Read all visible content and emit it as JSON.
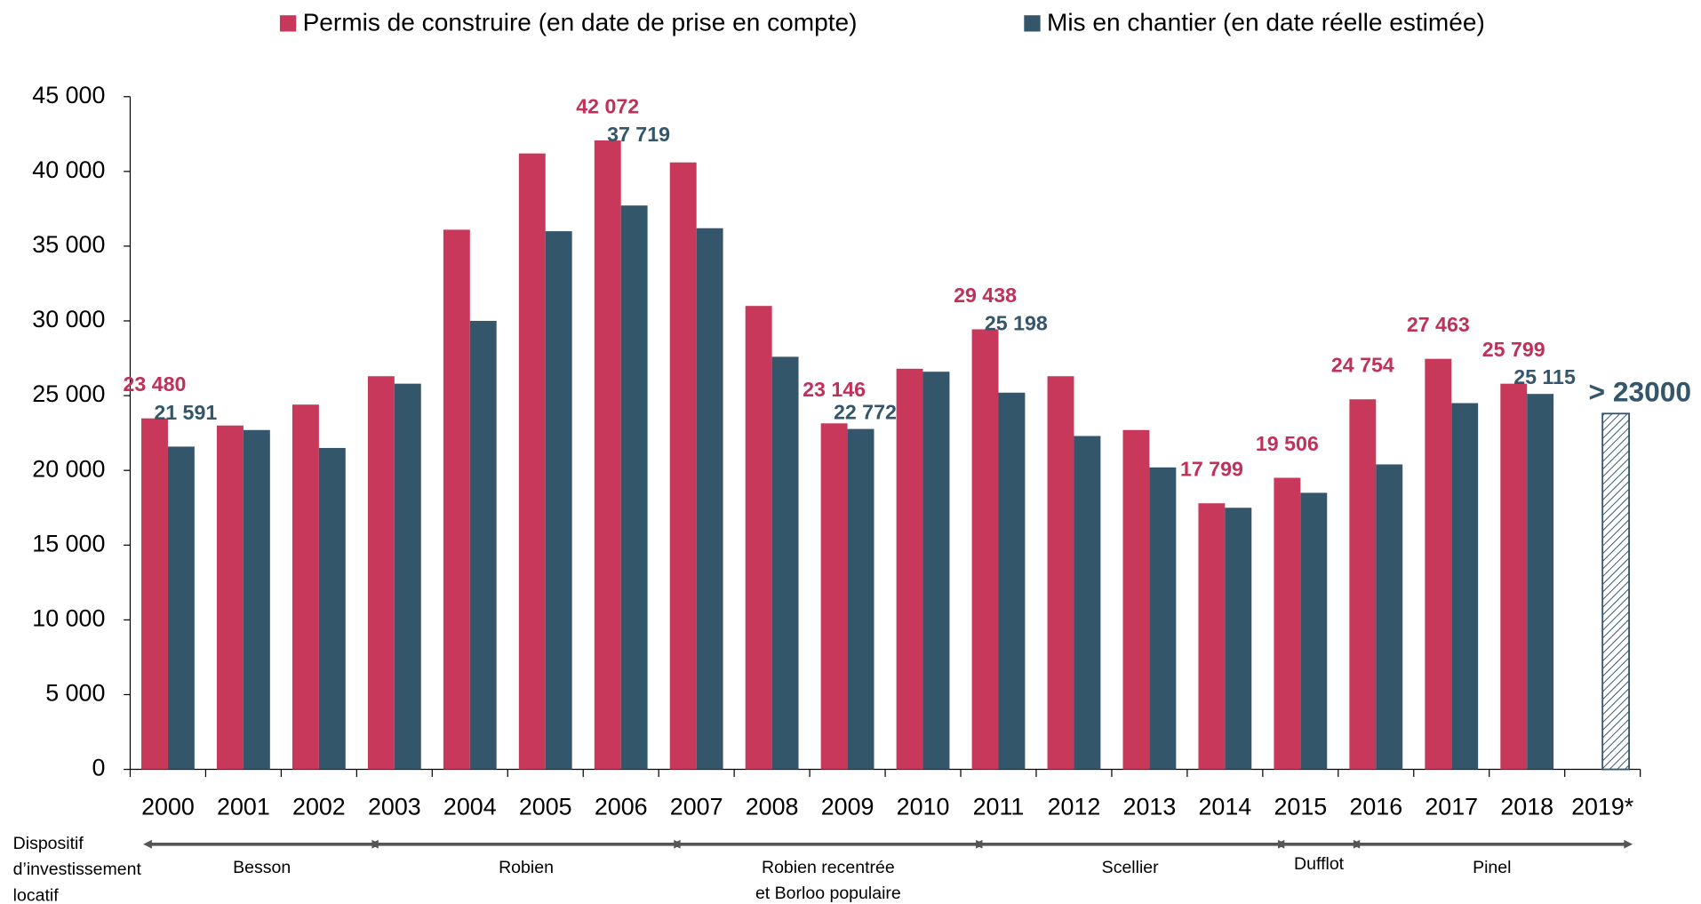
{
  "chart_data": {
    "type": "bar",
    "categories": [
      "2000",
      "2001",
      "2002",
      "2003",
      "2004",
      "2005",
      "2006",
      "2007",
      "2008",
      "2009",
      "2010",
      "2011",
      "2012",
      "2013",
      "2014",
      "2015",
      "2016",
      "2017",
      "2018",
      "2019*"
    ],
    "series": [
      {
        "name": "Permis de construire (en date de prise en compte)",
        "color": "#c8385a",
        "label_color": "#c0315a",
        "values": [
          23480,
          23000,
          24400,
          26300,
          36100,
          41200,
          42072,
          40600,
          31000,
          23146,
          26800,
          29438,
          26300,
          22700,
          17799,
          19506,
          24754,
          27463,
          25799,
          null
        ],
        "value_labels": [
          "23 480",
          null,
          null,
          null,
          null,
          null,
          "42 072",
          null,
          null,
          "23 146",
          null,
          "29 438",
          null,
          null,
          "17 799",
          "19 506",
          "24 754",
          "27 463",
          "25 799",
          null
        ]
      },
      {
        "name": "Mis en chantier (en date réelle estimée)",
        "color": "#34566b",
        "label_color": "#34566b",
        "values": [
          21591,
          22700,
          21500,
          25800,
          30000,
          36000,
          37719,
          36200,
          27600,
          22772,
          26600,
          25198,
          22300,
          20200,
          17500,
          18500,
          20400,
          24500,
          25115,
          null
        ],
        "value_labels": [
          "21 591",
          null,
          null,
          null,
          null,
          null,
          "37 719",
          null,
          null,
          "22 772",
          null,
          "25 198",
          null,
          null,
          null,
          null,
          null,
          null,
          "25 115",
          null
        ]
      }
    ],
    "estimate": {
      "category": "2019*",
      "value": 23800,
      "label": "> 23000"
    },
    "ylim": [
      0,
      45000
    ],
    "yticks": [
      0,
      {
        "value": 5000,
        "label": "5 000"
      },
      {
        "value": 10000,
        "label": "10 000"
      },
      {
        "value": 15000,
        "label": "15 000"
      },
      {
        "value": 20000,
        "label": "20 000"
      },
      {
        "value": 25000,
        "label": "25 000"
      },
      {
        "value": 30000,
        "label": "30 000"
      },
      {
        "value": 35000,
        "label": "35 000"
      },
      {
        "value": 40000,
        "label": "40 000"
      },
      {
        "value": 45000,
        "label": "45 000"
      }
    ],
    "legend": "top",
    "periods_title": [
      "Dispositif",
      "d’investissement",
      "locatif"
    ],
    "periods": [
      {
        "name": [
          "Besson"
        ],
        "from": "2000",
        "to": "2002"
      },
      {
        "name": [
          "Robien"
        ],
        "from": "2003",
        "to": "2006"
      },
      {
        "name": [
          "Robien recentrée",
          "et Borloo populaire"
        ],
        "from": "2007",
        "to": "2010"
      },
      {
        "name": [
          "Scellier"
        ],
        "from": "2011",
        "to": "2014"
      },
      {
        "name": [
          "Dufflot"
        ],
        "from": "2015",
        "to": "2015"
      },
      {
        "name": [
          "Pinel"
        ],
        "from": "2016",
        "to": "2019*"
      }
    ]
  }
}
